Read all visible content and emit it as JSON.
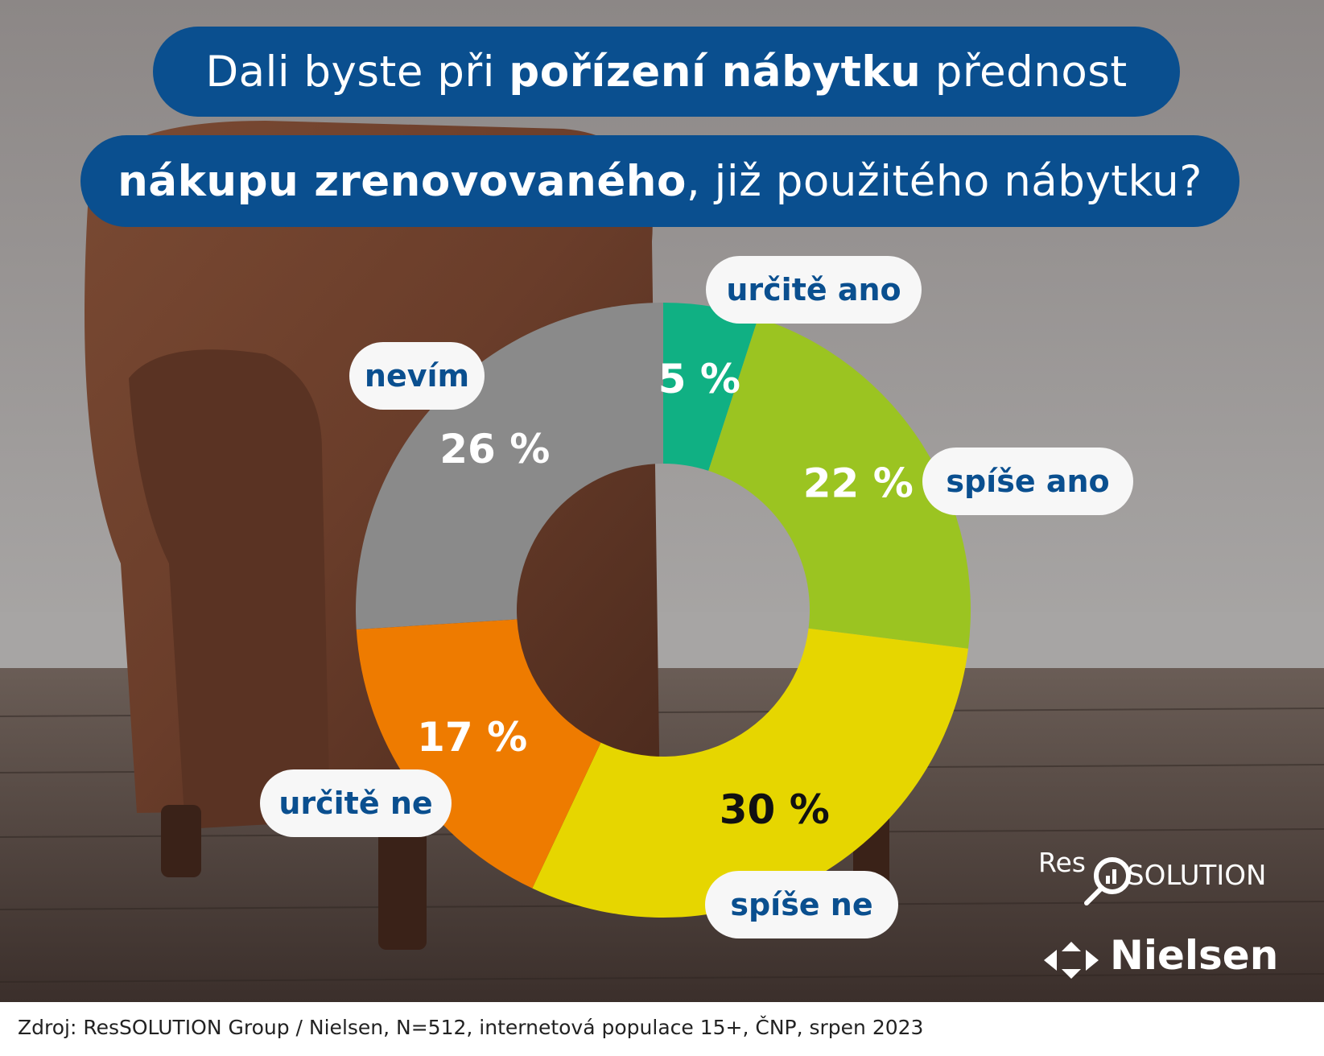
{
  "title": {
    "line1_pre": "Dali byste při ",
    "line1_bold": "pořízení nábytku",
    "line1_post": " přednost",
    "line2_bold": "nákupu zrenovovaného",
    "line2_post": ", již použitého nábytku?"
  },
  "chart_data": {
    "type": "pie",
    "variant": "donut",
    "title": "",
    "categories": [
      "určitě ano",
      "spíše ano",
      "spíše ne",
      "určitě ne",
      "nevím"
    ],
    "values": [
      5,
      22,
      30,
      17,
      26
    ],
    "labels": [
      "5 %",
      "22 %",
      "30 %",
      "17 %",
      "26 %"
    ],
    "colors": [
      "#10b083",
      "#9bc421",
      "#e6d600",
      "#ee7b00",
      "#8a8a8a"
    ],
    "label_colors": [
      "#ffffff",
      "#ffffff",
      "#111111",
      "#ffffff",
      "#ffffff"
    ],
    "start": "12 o'clock",
    "direction": "clockwise"
  },
  "logos": {
    "res_left": "Res",
    "res_right": "SOLUTION",
    "nielsen": "Nielsen"
  },
  "source_note": "Zdroj: ResSOLUTION Group / Nielsen, N=512, internetová populace 15+, ČNP, srpen 2023"
}
